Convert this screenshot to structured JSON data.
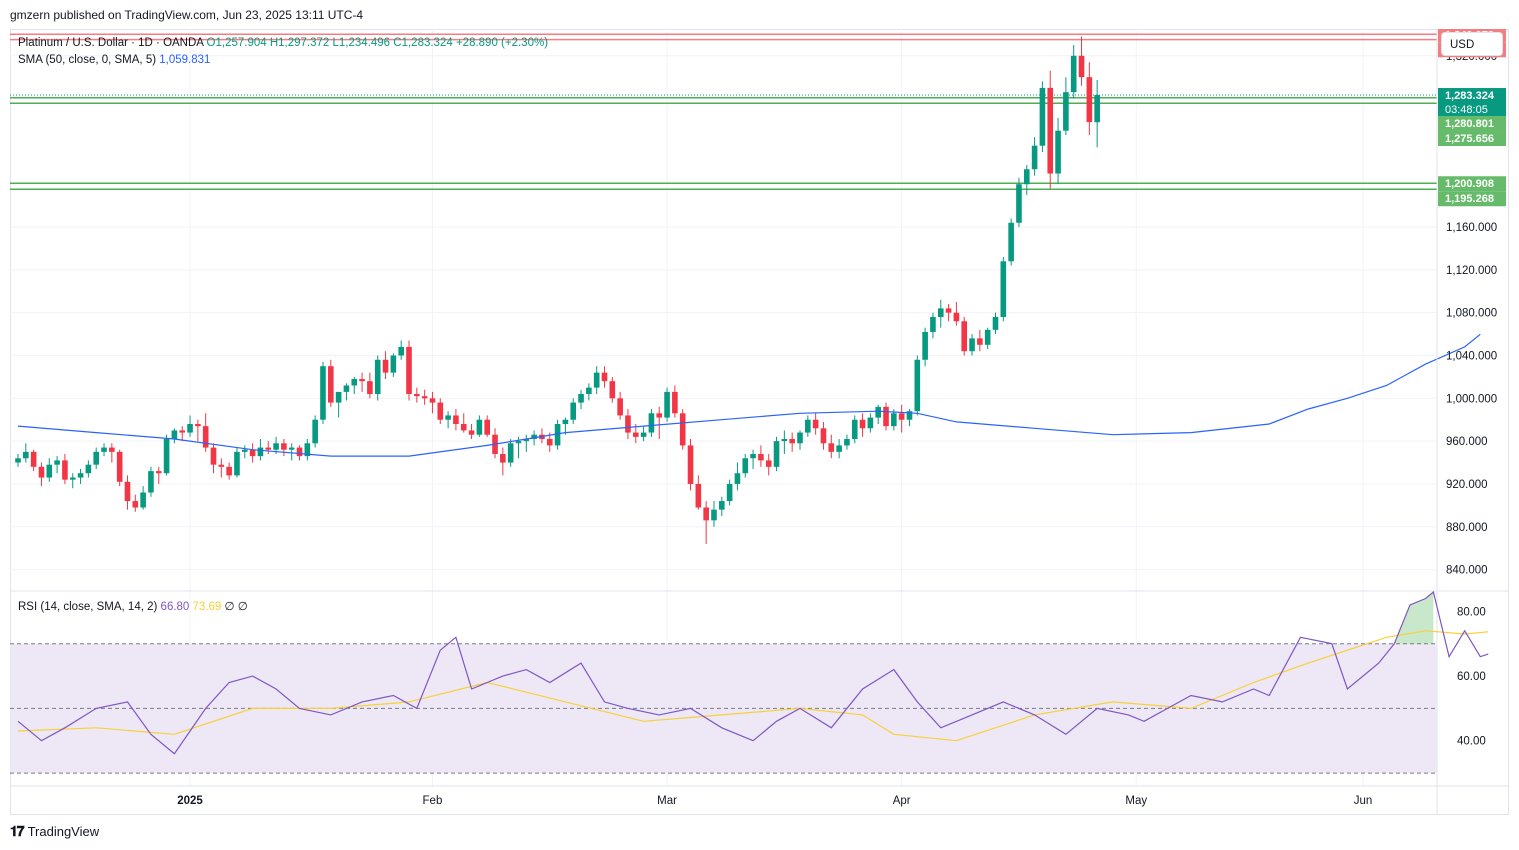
{
  "header": {
    "publisher_text": "gmzern published on TradingView.com, Jun 23, 2025 13:11 UTC-4"
  },
  "legend": {
    "symbol": "Platinum / U.S. Dollar · 1D · OANDA",
    "open": "O1,257.904",
    "high": "H1,297.372",
    "low": "L1,234.496",
    "close": "C1,283.324",
    "change": "+28.890 (+2.30%)",
    "sma_label": "SMA (50, close, 0, SMA, 5)",
    "sma_value": "1,059.831",
    "rsi_label": "RSI (14, close, SMA, 14, 2)",
    "rsi_value": "66.80",
    "rsi_ma_value": "73.69",
    "rsi_extra": "∅ ∅"
  },
  "currency_button": "USD",
  "footer": {
    "brand": "TradingView",
    "logo_icon": "tradingview-logo-icon"
  },
  "colors": {
    "up": "#089981",
    "down": "#f23645",
    "sma": "#2962ff",
    "rsi": "#7e57c2",
    "rsi_ma": "#f7d13a",
    "resistance": "#f77c80",
    "mid_support": "#4caf50",
    "band_fill": "#ede7f6"
  },
  "chart_data": [
    {
      "type": "candlestick",
      "title": "",
      "ylim": [
        820,
        1345
      ],
      "y_ticks": [
        "840.000",
        "880.000",
        "920.000",
        "960.000",
        "1,000.000",
        "1,040.000",
        "1,080.000",
        "1,120.000",
        "1,160.000",
        "1,320.000"
      ],
      "x_tick_labels": [
        {
          "label": "2025",
          "index": 22
        },
        {
          "label": "Feb",
          "index": 53
        },
        {
          "label": "Mar",
          "index": 83
        },
        {
          "label": "Apr",
          "index": 113
        },
        {
          "label": "May",
          "index": 143
        },
        {
          "label": "Jun",
          "index": 172
        }
      ],
      "horizontal_levels": [
        {
          "value": 1340.073,
          "label": "1,340.073",
          "color": "#f77c80"
        },
        {
          "value": 1335.105,
          "label": "1,335.105",
          "color": "#f77c80"
        },
        {
          "value": 1283.324,
          "label": "1,283.324",
          "color": "#089981",
          "style": "dotted",
          "countdown": "03:48:05"
        },
        {
          "value": 1280.801,
          "label": "1,280.801",
          "color": "#4caf50"
        },
        {
          "value": 1275.656,
          "label": "1,275.656",
          "color": "#4caf50"
        },
        {
          "value": 1200.908,
          "label": "1,200.908",
          "color": "#4caf50"
        },
        {
          "value": 1195.268,
          "label": "1,195.268",
          "color": "#4caf50"
        }
      ],
      "candles": [
        [
          940,
          948,
          936,
          944
        ],
        [
          944,
          958,
          940,
          950
        ],
        [
          950,
          952,
          932,
          936
        ],
        [
          936,
          940,
          918,
          926
        ],
        [
          926,
          944,
          922,
          938
        ],
        [
          938,
          946,
          930,
          942
        ],
        [
          942,
          948,
          920,
          924
        ],
        [
          924,
          930,
          916,
          926
        ],
        [
          926,
          934,
          920,
          930
        ],
        [
          930,
          942,
          926,
          938
        ],
        [
          938,
          954,
          934,
          950
        ],
        [
          950,
          958,
          946,
          954
        ],
        [
          954,
          958,
          940,
          950
        ],
        [
          950,
          952,
          918,
          922
        ],
        [
          922,
          928,
          896,
          904
        ],
        [
          904,
          910,
          894,
          898
        ],
        [
          898,
          918,
          896,
          912
        ],
        [
          912,
          936,
          908,
          932
        ],
        [
          932,
          936,
          920,
          930
        ],
        [
          930,
          966,
          928,
          962
        ],
        [
          962,
          972,
          958,
          970
        ],
        [
          970,
          974,
          960,
          968
        ],
        [
          968,
          984,
          964,
          976
        ],
        [
          976,
          980,
          960,
          974
        ],
        [
          974,
          986,
          950,
          954
        ],
        [
          954,
          958,
          930,
          938
        ],
        [
          938,
          944,
          926,
          936
        ],
        [
          936,
          940,
          924,
          928
        ],
        [
          928,
          954,
          926,
          950
        ],
        [
          950,
          956,
          944,
          952
        ],
        [
          952,
          958,
          940,
          946
        ],
        [
          946,
          962,
          942,
          954
        ],
        [
          954,
          960,
          948,
          952
        ],
        [
          952,
          964,
          948,
          958
        ],
        [
          958,
          962,
          946,
          952
        ],
        [
          952,
          958,
          942,
          954
        ],
        [
          954,
          956,
          942,
          946
        ],
        [
          946,
          962,
          942,
          958
        ],
        [
          958,
          984,
          954,
          980
        ],
        [
          980,
          1034,
          976,
          1030
        ],
        [
          1030,
          1036,
          992,
          996
        ],
        [
          996,
          1004,
          982,
          1006
        ],
        [
          1006,
          1014,
          998,
          1012
        ],
        [
          1012,
          1020,
          1004,
          1018
        ],
        [
          1018,
          1024,
          1006,
          1016
        ],
        [
          1016,
          1024,
          1000,
          1004
        ],
        [
          1004,
          1040,
          998,
          1036
        ],
        [
          1036,
          1044,
          1018,
          1024
        ],
        [
          1024,
          1042,
          1020,
          1040
        ],
        [
          1040,
          1054,
          1036,
          1048
        ],
        [
          1048,
          1054,
          998,
          1004
        ],
        [
          1004,
          1010,
          996,
          1002
        ],
        [
          1002,
          1008,
          994,
          1000
        ],
        [
          1000,
          1006,
          986,
          996
        ],
        [
          996,
          1000,
          976,
          980
        ],
        [
          980,
          988,
          972,
          984
        ],
        [
          984,
          990,
          970,
          976
        ],
        [
          976,
          986,
          968,
          970
        ],
        [
          970,
          976,
          962,
          966
        ],
        [
          966,
          984,
          964,
          980
        ],
        [
          980,
          984,
          964,
          966
        ],
        [
          966,
          972,
          944,
          948
        ],
        [
          948,
          954,
          928,
          940
        ],
        [
          940,
          962,
          936,
          958
        ],
        [
          958,
          964,
          944,
          960
        ],
        [
          960,
          966,
          950,
          962
        ],
        [
          962,
          970,
          956,
          966
        ],
        [
          966,
          972,
          958,
          962
        ],
        [
          962,
          968,
          950,
          956
        ],
        [
          956,
          980,
          952,
          976
        ],
        [
          976,
          982,
          966,
          980
        ],
        [
          980,
          1000,
          976,
          996
        ],
        [
          996,
          1008,
          990,
          1004
        ],
        [
          1004,
          1014,
          998,
          1010
        ],
        [
          1010,
          1030,
          1004,
          1024
        ],
        [
          1024,
          1030,
          1010,
          1016
        ],
        [
          1016,
          1020,
          996,
          1000
        ],
        [
          1000,
          1006,
          980,
          984
        ],
        [
          984,
          990,
          962,
          968
        ],
        [
          968,
          976,
          958,
          964
        ],
        [
          964,
          974,
          960,
          968
        ],
        [
          968,
          990,
          964,
          986
        ],
        [
          986,
          992,
          962,
          982
        ],
        [
          982,
          1010,
          978,
          1006
        ],
        [
          1006,
          1012,
          982,
          986
        ],
        [
          986,
          990,
          952,
          956
        ],
        [
          956,
          962,
          914,
          920
        ],
        [
          920,
          928,
          896,
          898
        ],
        [
          898,
          904,
          864,
          886
        ],
        [
          886,
          904,
          880,
          896
        ],
        [
          896,
          908,
          890,
          904
        ],
        [
          904,
          924,
          900,
          920
        ],
        [
          920,
          940,
          914,
          930
        ],
        [
          930,
          948,
          926,
          944
        ],
        [
          944,
          952,
          934,
          948
        ],
        [
          948,
          956,
          936,
          942
        ],
        [
          942,
          948,
          928,
          936
        ],
        [
          936,
          964,
          932,
          960
        ],
        [
          960,
          970,
          948,
          962
        ],
        [
          962,
          968,
          950,
          958
        ],
        [
          958,
          970,
          952,
          968
        ],
        [
          968,
          984,
          964,
          980
        ],
        [
          980,
          986,
          966,
          972
        ],
        [
          972,
          978,
          952,
          958
        ],
        [
          958,
          966,
          944,
          950
        ],
        [
          950,
          962,
          944,
          956
        ],
        [
          956,
          966,
          952,
          962
        ],
        [
          962,
          984,
          958,
          980
        ],
        [
          980,
          986,
          964,
          972
        ],
        [
          972,
          986,
          968,
          982
        ],
        [
          982,
          994,
          976,
          992
        ],
        [
          992,
          996,
          970,
          974
        ],
        [
          974,
          990,
          970,
          986
        ],
        [
          986,
          994,
          968,
          980
        ],
        [
          980,
          990,
          974,
          988
        ],
        [
          988,
          1040,
          984,
          1036
        ],
        [
          1036,
          1066,
          1030,
          1062
        ],
        [
          1062,
          1080,
          1056,
          1076
        ],
        [
          1076,
          1092,
          1066,
          1084
        ],
        [
          1084,
          1088,
          1072,
          1080
        ],
        [
          1080,
          1090,
          1068,
          1072
        ],
        [
          1072,
          1076,
          1040,
          1044
        ],
        [
          1044,
          1060,
          1040,
          1056
        ],
        [
          1056,
          1064,
          1044,
          1050
        ],
        [
          1050,
          1066,
          1046,
          1064
        ],
        [
          1064,
          1080,
          1060,
          1076
        ],
        [
          1076,
          1132,
          1072,
          1128
        ],
        [
          1128,
          1168,
          1124,
          1164
        ],
        [
          1164,
          1206,
          1160,
          1200
        ],
        [
          1200,
          1218,
          1190,
          1214
        ],
        [
          1214,
          1244,
          1208,
          1236
        ],
        [
          1236,
          1296,
          1230,
          1290
        ],
        [
          1290,
          1306,
          1196,
          1210
        ],
        [
          1210,
          1262,
          1200,
          1250
        ],
        [
          1250,
          1300,
          1246,
          1286
        ],
        [
          1286,
          1330,
          1280,
          1320
        ],
        [
          1320,
          1338,
          1292,
          1300
        ],
        [
          1300,
          1314,
          1246,
          1258
        ],
        [
          1257.904,
          1297.372,
          1234.496,
          1283.324
        ]
      ],
      "sma": [
        [
          0,
          974
        ],
        [
          10,
          968
        ],
        [
          20,
          962
        ],
        [
          30,
          952
        ],
        [
          40,
          946
        ],
        [
          50,
          946
        ],
        [
          60,
          956
        ],
        [
          70,
          968
        ],
        [
          80,
          974
        ],
        [
          90,
          980
        ],
        [
          100,
          986
        ],
        [
          110,
          988
        ],
        [
          115,
          986
        ],
        [
          120,
          978
        ],
        [
          130,
          972
        ],
        [
          140,
          966
        ],
        [
          150,
          968
        ],
        [
          160,
          976
        ],
        [
          165,
          990
        ],
        [
          170,
          1000
        ],
        [
          175,
          1012
        ],
        [
          180,
          1032
        ],
        [
          185,
          1048
        ],
        [
          187,
          1059.831
        ]
      ]
    },
    {
      "type": "line",
      "title": "",
      "ylim": [
        26,
        86
      ],
      "y_ticks": [
        "40.00",
        "60.00",
        "80.00"
      ],
      "band": [
        30,
        70
      ],
      "midline": 50,
      "rsi": [
        [
          0,
          46
        ],
        [
          3,
          40
        ],
        [
          6,
          44
        ],
        [
          10,
          50
        ],
        [
          14,
          52
        ],
        [
          17,
          42
        ],
        [
          20,
          36
        ],
        [
          24,
          50
        ],
        [
          27,
          58
        ],
        [
          30,
          60
        ],
        [
          33,
          56
        ],
        [
          36,
          50
        ],
        [
          40,
          48
        ],
        [
          44,
          52
        ],
        [
          48,
          54
        ],
        [
          51,
          50
        ],
        [
          54,
          68
        ],
        [
          56,
          72
        ],
        [
          58,
          56
        ],
        [
          62,
          60
        ],
        [
          65,
          62
        ],
        [
          68,
          58
        ],
        [
          72,
          64
        ],
        [
          75,
          52
        ],
        [
          78,
          50
        ],
        [
          82,
          48
        ],
        [
          86,
          50
        ],
        [
          90,
          44
        ],
        [
          94,
          40
        ],
        [
          97,
          46
        ],
        [
          100,
          50
        ],
        [
          104,
          44
        ],
        [
          108,
          56
        ],
        [
          112,
          62
        ],
        [
          115,
          52
        ],
        [
          118,
          44
        ],
        [
          122,
          48
        ],
        [
          126,
          52
        ],
        [
          130,
          48
        ],
        [
          134,
          42
        ],
        [
          138,
          50
        ],
        [
          142,
          48
        ],
        [
          144,
          46
        ],
        [
          147,
          50
        ],
        [
          150,
          54
        ],
        [
          154,
          52
        ],
        [
          158,
          56
        ],
        [
          160,
          54
        ],
        [
          164,
          72
        ],
        [
          168,
          70
        ],
        [
          170,
          56
        ],
        [
          174,
          64
        ],
        [
          176,
          70
        ],
        [
          178,
          82
        ],
        [
          180,
          84
        ],
        [
          181,
          86
        ],
        [
          183,
          66
        ],
        [
          185,
          74
        ],
        [
          187,
          66
        ],
        [
          188,
          66.8
        ]
      ],
      "rsi_ma": [
        [
          0,
          43
        ],
        [
          10,
          44
        ],
        [
          20,
          42
        ],
        [
          30,
          50
        ],
        [
          40,
          50
        ],
        [
          50,
          52
        ],
        [
          60,
          58
        ],
        [
          70,
          52
        ],
        [
          80,
          46
        ],
        [
          90,
          48
        ],
        [
          100,
          50
        ],
        [
          108,
          48
        ],
        [
          112,
          42
        ],
        [
          120,
          40
        ],
        [
          130,
          48
        ],
        [
          140,
          52
        ],
        [
          150,
          50
        ],
        [
          158,
          58
        ],
        [
          165,
          64
        ],
        [
          170,
          68
        ],
        [
          175,
          72
        ],
        [
          180,
          74
        ],
        [
          185,
          73
        ],
        [
          188,
          73.69
        ]
      ]
    }
  ]
}
